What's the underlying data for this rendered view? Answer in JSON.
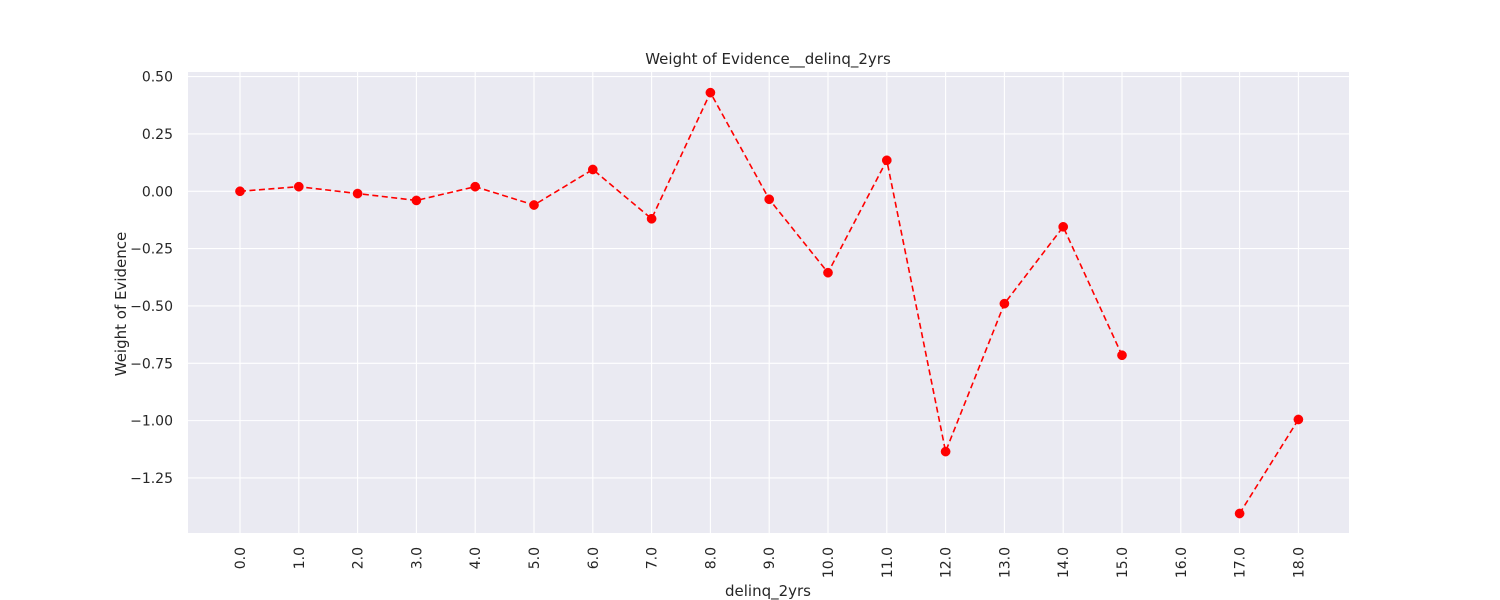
{
  "chart_data": {
    "type": "line",
    "title": "Weight of Evidence__delinq_2yrs",
    "xlabel": "delinq_2yrs",
    "ylabel": "Weight of Evidence",
    "x_categories": [
      "0.0",
      "1.0",
      "2.0",
      "3.0",
      "4.0",
      "5.0",
      "6.0",
      "7.0",
      "8.0",
      "9.0",
      "10.0",
      "11.0",
      "12.0",
      "13.0",
      "14.0",
      "15.0",
      "16.0",
      "17.0",
      "18.0"
    ],
    "y_ticks": [
      0.5,
      0.25,
      0.0,
      -0.25,
      -0.5,
      -0.75,
      -1.0,
      -1.25
    ],
    "y_tick_labels": [
      "0.50",
      "0.25",
      "0.00",
      "−0.25",
      "−0.50",
      "−0.75",
      "−1.00",
      "−1.25"
    ],
    "ylim": [
      -1.49,
      0.52
    ],
    "grid": true,
    "series": [
      {
        "values": [
          0.0,
          0.02,
          -0.01,
          -0.04,
          0.02,
          -0.06,
          0.095,
          -0.12,
          0.43,
          -0.035,
          -0.355,
          0.135,
          -1.135,
          -0.49,
          -0.155,
          -0.715,
          null,
          -1.405,
          -0.995
        ],
        "color": "#ff0000",
        "line_style": "dashed",
        "marker": "circle"
      }
    ],
    "colors": {
      "plot_background": "#eaeaf2",
      "grid": "#ffffff",
      "text": "#262626"
    }
  }
}
